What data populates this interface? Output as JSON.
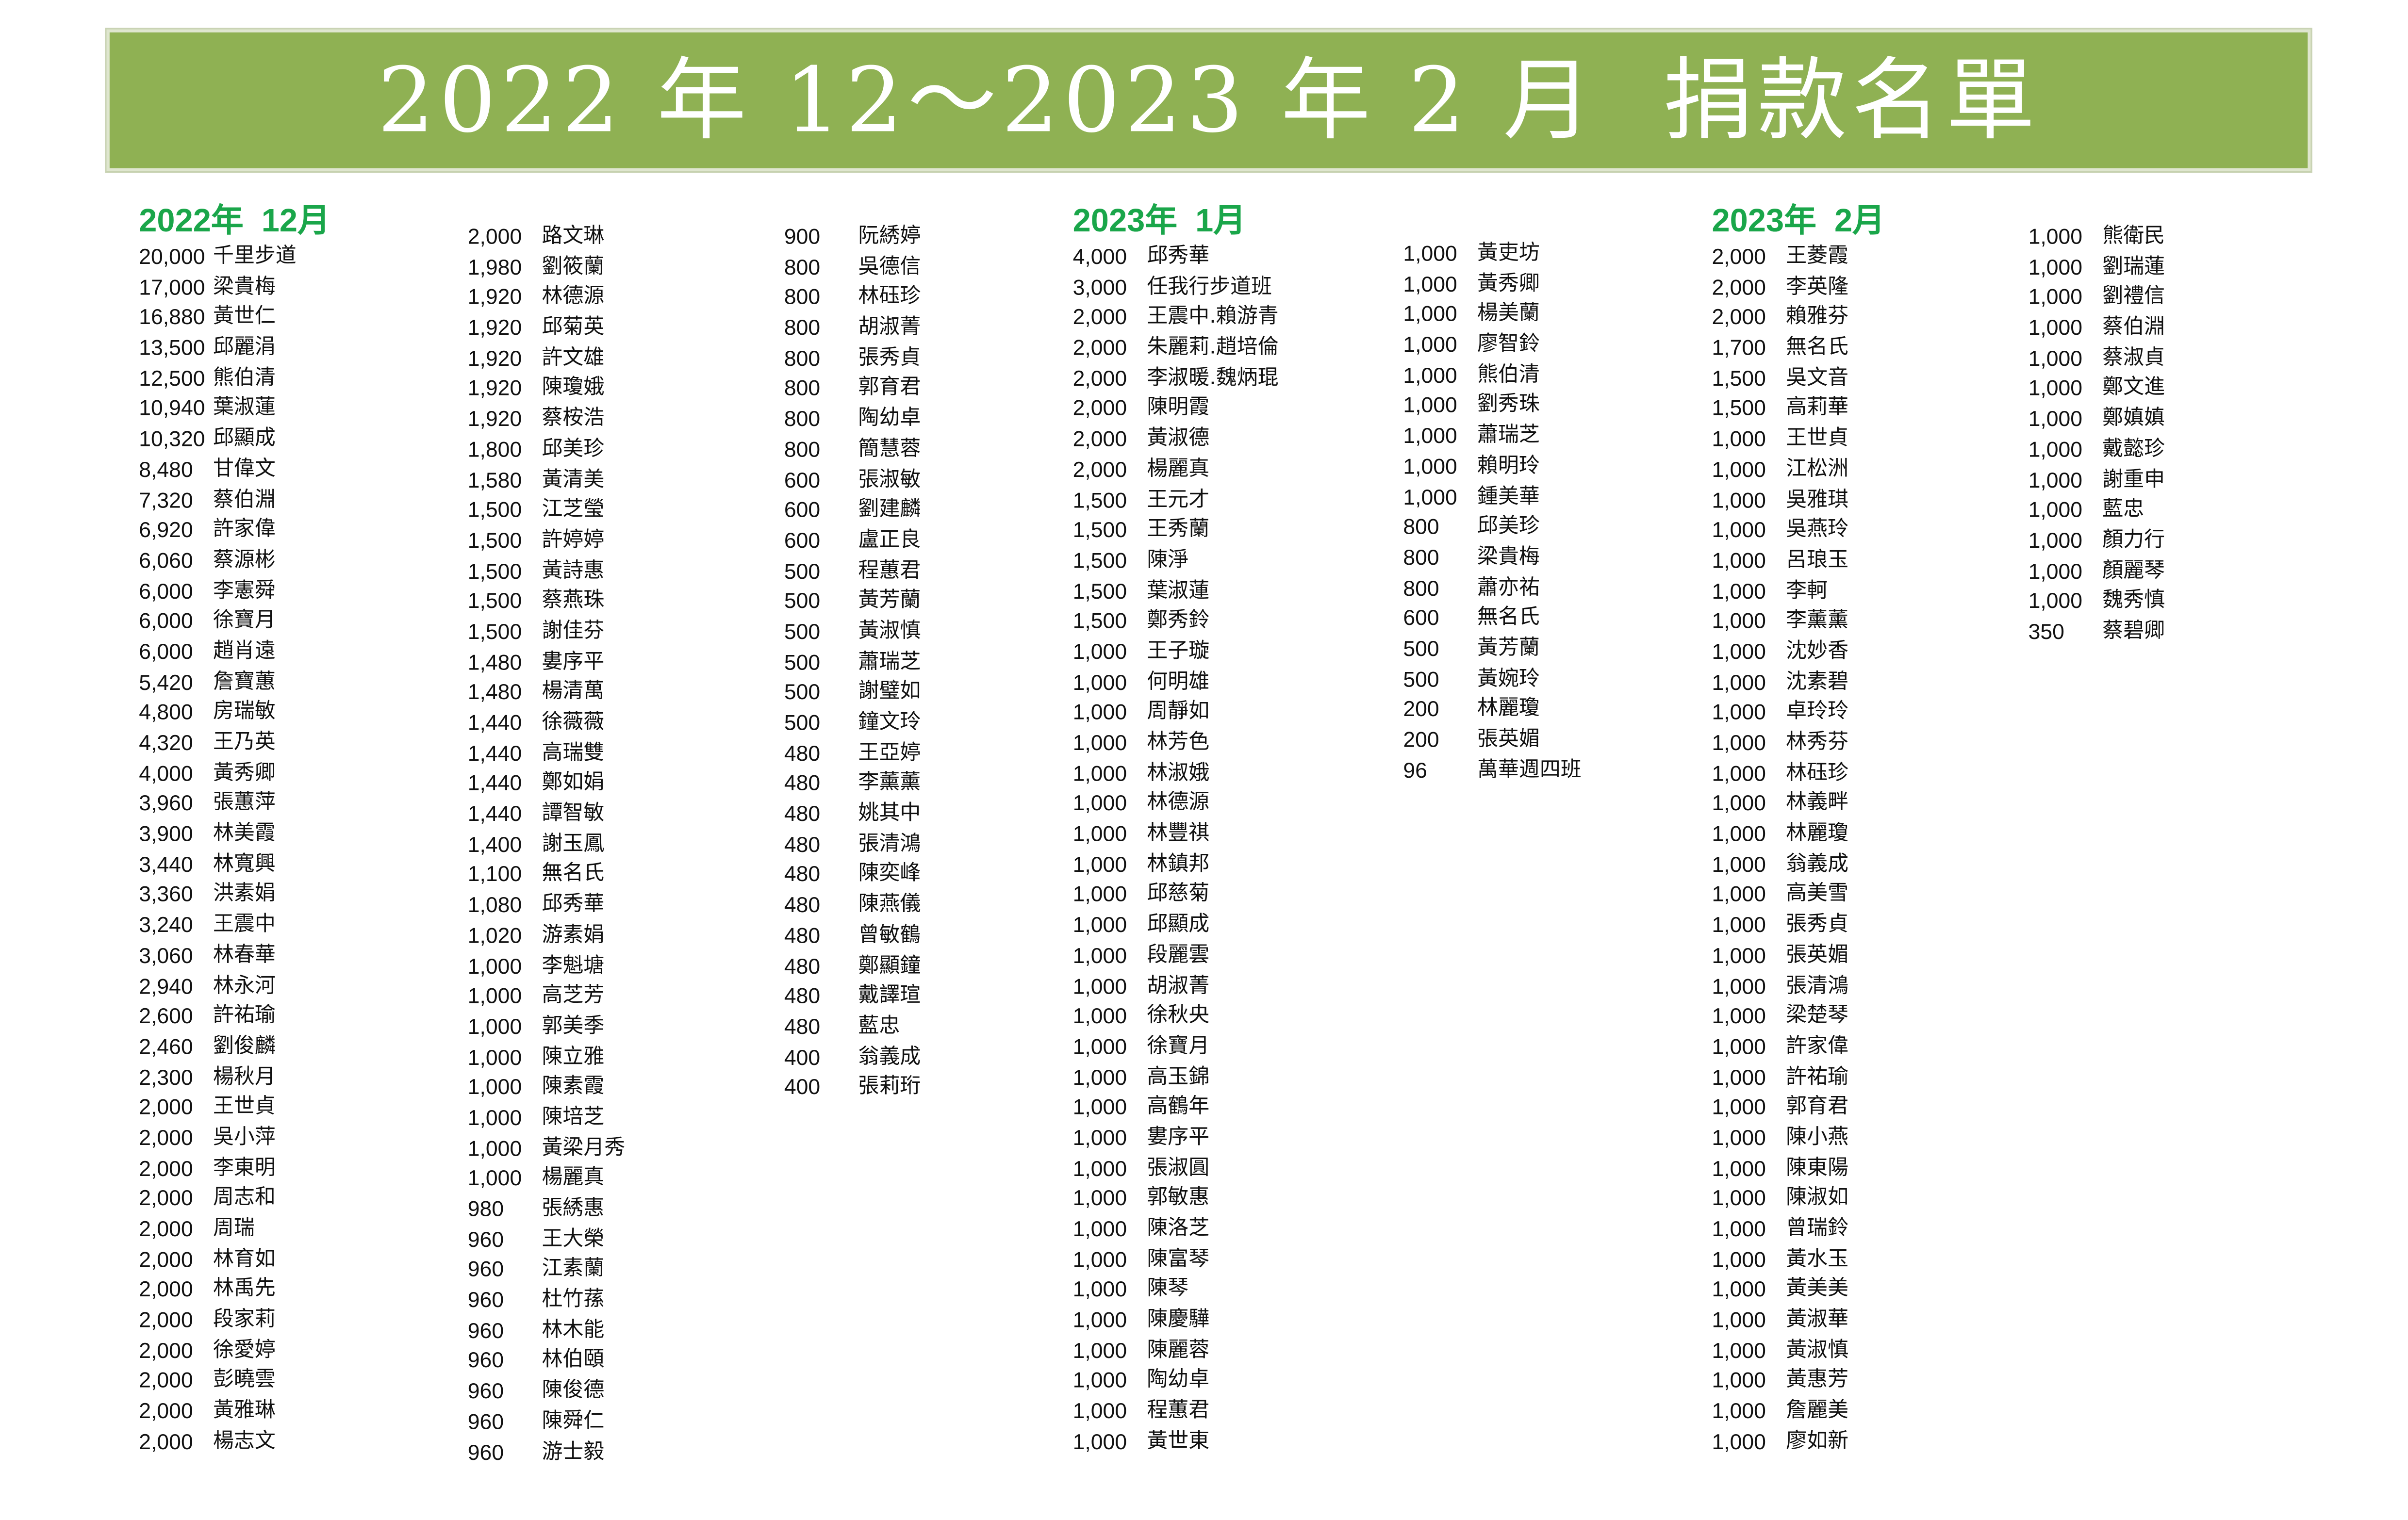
{
  "title": "2022 年 12～2023 年 2 月  捐款名單",
  "colors": {
    "banner": "#8fb153",
    "heading": "#1aa64a"
  },
  "columns": [
    {
      "heading": "2022年  12月",
      "rows": [
        [
          "20,000",
          "千里步道"
        ],
        [
          "17,000",
          "梁貴梅"
        ],
        [
          "16,880",
          "黃世仁"
        ],
        [
          "13,500",
          "邱麗涓"
        ],
        [
          "12,500",
          "熊伯清"
        ],
        [
          "10,940",
          "葉淑蓮"
        ],
        [
          "10,320",
          "邱顯成"
        ],
        [
          "8,480",
          "甘偉文"
        ],
        [
          "7,320",
          "蔡伯淵"
        ],
        [
          "6,920",
          "許家偉"
        ],
        [
          "6,060",
          "蔡源彬"
        ],
        [
          "6,000",
          "李憲舜"
        ],
        [
          "6,000",
          "徐寶月"
        ],
        [
          "6,000",
          "趙肖遠"
        ],
        [
          "5,420",
          "詹寶蕙"
        ],
        [
          "4,800",
          "房瑞敏"
        ],
        [
          "4,320",
          "王乃英"
        ],
        [
          "4,000",
          "黃秀卿"
        ],
        [
          "3,960",
          "張蕙萍"
        ],
        [
          "3,900",
          "林美霞"
        ],
        [
          "3,440",
          "林寬興"
        ],
        [
          "3,360",
          "洪素娟"
        ],
        [
          "3,240",
          "王震中"
        ],
        [
          "3,060",
          "林春華"
        ],
        [
          "2,940",
          "林永河"
        ],
        [
          "2,600",
          "許祐瑜"
        ],
        [
          "2,460",
          "劉俊麟"
        ],
        [
          "2,300",
          "楊秋月"
        ],
        [
          "2,000",
          "王世貞"
        ],
        [
          "2,000",
          "吳小萍"
        ],
        [
          "2,000",
          "李東明"
        ],
        [
          "2,000",
          "周志和"
        ],
        [
          "2,000",
          "周瑞"
        ],
        [
          "2,000",
          "林育如"
        ],
        [
          "2,000",
          "林禹先"
        ],
        [
          "2,000",
          "段家莉"
        ],
        [
          "2,000",
          "徐愛婷"
        ],
        [
          "2,000",
          "彭曉雲"
        ],
        [
          "2,000",
          "黃雅琳"
        ],
        [
          "2,000",
          "楊志文"
        ]
      ]
    },
    {
      "heading": "",
      "rows": [
        [
          "2,000",
          "路文琳"
        ],
        [
          "1,980",
          "劉筱蘭"
        ],
        [
          "1,920",
          "林德源"
        ],
        [
          "1,920",
          "邱菊英"
        ],
        [
          "1,920",
          "許文雄"
        ],
        [
          "1,920",
          "陳瓊娥"
        ],
        [
          "1,920",
          "蔡桉浩"
        ],
        [
          "1,800",
          "邱美珍"
        ],
        [
          "1,580",
          "黃清美"
        ],
        [
          "1,500",
          "江芝瑩"
        ],
        [
          "1,500",
          "許婷婷"
        ],
        [
          "1,500",
          "黃詩惠"
        ],
        [
          "1,500",
          "蔡燕珠"
        ],
        [
          "1,500",
          "謝佳芬"
        ],
        [
          "1,480",
          "婁序平"
        ],
        [
          "1,480",
          "楊清萬"
        ],
        [
          "1,440",
          "徐薇薇"
        ],
        [
          "1,440",
          "高瑞雙"
        ],
        [
          "1,440",
          "鄭如娟"
        ],
        [
          "1,440",
          "譚智敏"
        ],
        [
          "1,400",
          "謝玉鳳"
        ],
        [
          "1,100",
          "無名氏"
        ],
        [
          "1,080",
          "邱秀華"
        ],
        [
          "1,020",
          "游素娟"
        ],
        [
          "1,000",
          "李魁塘"
        ],
        [
          "1,000",
          "高芝芳"
        ],
        [
          "1,000",
          "郭美季"
        ],
        [
          "1,000",
          "陳立雅"
        ],
        [
          "1,000",
          "陳素霞"
        ],
        [
          "1,000",
          "陳培芝"
        ],
        [
          "1,000",
          "黃梁月秀"
        ],
        [
          "1,000",
          "楊麗真"
        ],
        [
          "980",
          "張綉惠"
        ],
        [
          "960",
          "王大榮"
        ],
        [
          "960",
          "江素蘭"
        ],
        [
          "960",
          "杜竹蓀"
        ],
        [
          "960",
          "林木能"
        ],
        [
          "960",
          "林伯頤"
        ],
        [
          "960",
          "陳俊德"
        ],
        [
          "960",
          "陳舜仁"
        ],
        [
          "960",
          "游士毅"
        ]
      ]
    },
    {
      "heading": "",
      "rows": [
        [
          "900",
          "阮綉婷"
        ],
        [
          "800",
          "吳德信"
        ],
        [
          "800",
          "林砡珍"
        ],
        [
          "800",
          "胡淑菁"
        ],
        [
          "800",
          "張秀貞"
        ],
        [
          "800",
          "郭育君"
        ],
        [
          "800",
          "陶幼卓"
        ],
        [
          "800",
          "簡慧蓉"
        ],
        [
          "600",
          "張淑敏"
        ],
        [
          "600",
          "劉建麟"
        ],
        [
          "600",
          "盧正良"
        ],
        [
          "500",
          "程蕙君"
        ],
        [
          "500",
          "黃芳蘭"
        ],
        [
          "500",
          "黃淑慎"
        ],
        [
          "500",
          "蕭瑞芝"
        ],
        [
          "500",
          "謝璧如"
        ],
        [
          "500",
          "鐘文玲"
        ],
        [
          "480",
          "王亞婷"
        ],
        [
          "480",
          "李薰薰"
        ],
        [
          "480",
          "姚其中"
        ],
        [
          "480",
          "張清鴻"
        ],
        [
          "480",
          "陳奕峰"
        ],
        [
          "480",
          "陳燕儀"
        ],
        [
          "480",
          "曾敏鶴"
        ],
        [
          "480",
          "鄭顯鐘"
        ],
        [
          "480",
          "戴譯瑄"
        ],
        [
          "480",
          "藍忠"
        ],
        [
          "400",
          "翁義成"
        ],
        [
          "400",
          "張莉珩"
        ]
      ]
    },
    {
      "heading": "2023年  1月",
      "rows": [
        [
          "4,000",
          "邱秀華"
        ],
        [
          "3,000",
          "任我行步道班"
        ],
        [
          "2,000",
          "王震中.賴游青"
        ],
        [
          "2,000",
          "朱麗莉.趙培倫"
        ],
        [
          "2,000",
          "李淑暖.魏炳琨"
        ],
        [
          "2,000",
          "陳明霞"
        ],
        [
          "2,000",
          "黃淑德"
        ],
        [
          "2,000",
          "楊麗真"
        ],
        [
          "1,500",
          "王元才"
        ],
        [
          "1,500",
          "王秀蘭"
        ],
        [
          "1,500",
          "陳淨"
        ],
        [
          "1,500",
          "葉淑蓮"
        ],
        [
          "1,500",
          "鄭秀鈴"
        ],
        [
          "1,000",
          "王子璇"
        ],
        [
          "1,000",
          "何明雄"
        ],
        [
          "1,000",
          "周靜如"
        ],
        [
          "1,000",
          "林芳色"
        ],
        [
          "1,000",
          "林淑娥"
        ],
        [
          "1,000",
          "林德源"
        ],
        [
          "1,000",
          "林豐祺"
        ],
        [
          "1,000",
          "林鎮邦"
        ],
        [
          "1,000",
          "邱慈菊"
        ],
        [
          "1,000",
          "邱顯成"
        ],
        [
          "1,000",
          "段麗雲"
        ],
        [
          "1,000",
          "胡淑菁"
        ],
        [
          "1,000",
          "徐秋央"
        ],
        [
          "1,000",
          "徐寶月"
        ],
        [
          "1,000",
          "高玉錦"
        ],
        [
          "1,000",
          "高鶴年"
        ],
        [
          "1,000",
          "婁序平"
        ],
        [
          "1,000",
          "張淑圓"
        ],
        [
          "1,000",
          "郭敏惠"
        ],
        [
          "1,000",
          "陳洛芝"
        ],
        [
          "1,000",
          "陳富琴"
        ],
        [
          "1,000",
          "陳琴"
        ],
        [
          "1,000",
          "陳慶驊"
        ],
        [
          "1,000",
          "陳麗蓉"
        ],
        [
          "1,000",
          "陶幼卓"
        ],
        [
          "1,000",
          "程蕙君"
        ],
        [
          "1,000",
          "黃世東"
        ]
      ]
    },
    {
      "heading": "",
      "rows": [
        [
          "1,000",
          "黃吏坊"
        ],
        [
          "1,000",
          "黃秀卿"
        ],
        [
          "1,000",
          "楊美蘭"
        ],
        [
          "1,000",
          "廖智鈴"
        ],
        [
          "1,000",
          "熊伯清"
        ],
        [
          "1,000",
          "劉秀珠"
        ],
        [
          "1,000",
          "蕭瑞芝"
        ],
        [
          "1,000",
          "賴明玲"
        ],
        [
          "1,000",
          "鍾美華"
        ],
        [
          "800",
          "邱美珍"
        ],
        [
          "800",
          "梁貴梅"
        ],
        [
          "800",
          "蕭亦祐"
        ],
        [
          "600",
          "無名氏"
        ],
        [
          "500",
          "黃芳蘭"
        ],
        [
          "500",
          "黃婉玲"
        ],
        [
          "200",
          "林麗瓊"
        ],
        [
          "200",
          "張英媚"
        ],
        [
          "96",
          "萬華週四班"
        ]
      ]
    },
    {
      "heading": "2023年  2月",
      "rows": [
        [
          "2,000",
          "王菱霞"
        ],
        [
          "2,000",
          "李英隆"
        ],
        [
          "2,000",
          "賴雅芬"
        ],
        [
          "1,700",
          "無名氏"
        ],
        [
          "1,500",
          "吳文音"
        ],
        [
          "1,500",
          "高莉華"
        ],
        [
          "1,000",
          "王世貞"
        ],
        [
          "1,000",
          "江松洲"
        ],
        [
          "1,000",
          "吳雅琪"
        ],
        [
          "1,000",
          "吳燕玲"
        ],
        [
          "1,000",
          "呂琅玉"
        ],
        [
          "1,000",
          "李軻"
        ],
        [
          "1,000",
          "李薰薰"
        ],
        [
          "1,000",
          "沈妙香"
        ],
        [
          "1,000",
          "沈素碧"
        ],
        [
          "1,000",
          "卓玲玲"
        ],
        [
          "1,000",
          "林秀芬"
        ],
        [
          "1,000",
          "林砡珍"
        ],
        [
          "1,000",
          "林義畔"
        ],
        [
          "1,000",
          "林麗瓊"
        ],
        [
          "1,000",
          "翁義成"
        ],
        [
          "1,000",
          "高美雪"
        ],
        [
          "1,000",
          "張秀貞"
        ],
        [
          "1,000",
          "張英媚"
        ],
        [
          "1,000",
          "張清鴻"
        ],
        [
          "1,000",
          "梁楚琴"
        ],
        [
          "1,000",
          "許家偉"
        ],
        [
          "1,000",
          "許祐瑜"
        ],
        [
          "1,000",
          "郭育君"
        ],
        [
          "1,000",
          "陳小燕"
        ],
        [
          "1,000",
          "陳東陽"
        ],
        [
          "1,000",
          "陳淑如"
        ],
        [
          "1,000",
          "曾瑞鈴"
        ],
        [
          "1,000",
          "黃水玉"
        ],
        [
          "1,000",
          "黃美美"
        ],
        [
          "1,000",
          "黃淑華"
        ],
        [
          "1,000",
          "黃淑慎"
        ],
        [
          "1,000",
          "黃惠芳"
        ],
        [
          "1,000",
          "詹麗美"
        ],
        [
          "1,000",
          "廖如新"
        ]
      ]
    },
    {
      "heading": "",
      "rows": [
        [
          "1,000",
          "熊衛民"
        ],
        [
          "1,000",
          "劉瑞蓮"
        ],
        [
          "1,000",
          "劉禮信"
        ],
        [
          "1,000",
          "蔡伯淵"
        ],
        [
          "1,000",
          "蔡淑貞"
        ],
        [
          "1,000",
          "鄭文進"
        ],
        [
          "1,000",
          "鄭嫃嫃"
        ],
        [
          "1,000",
          "戴懿珍"
        ],
        [
          "1,000",
          "謝重申"
        ],
        [
          "1,000",
          "藍忠"
        ],
        [
          "1,000",
          "顏力行"
        ],
        [
          "1,000",
          "顏麗琴"
        ],
        [
          "1,000",
          "魏秀慎"
        ],
        [
          "350",
          "蔡碧卿"
        ]
      ]
    }
  ]
}
